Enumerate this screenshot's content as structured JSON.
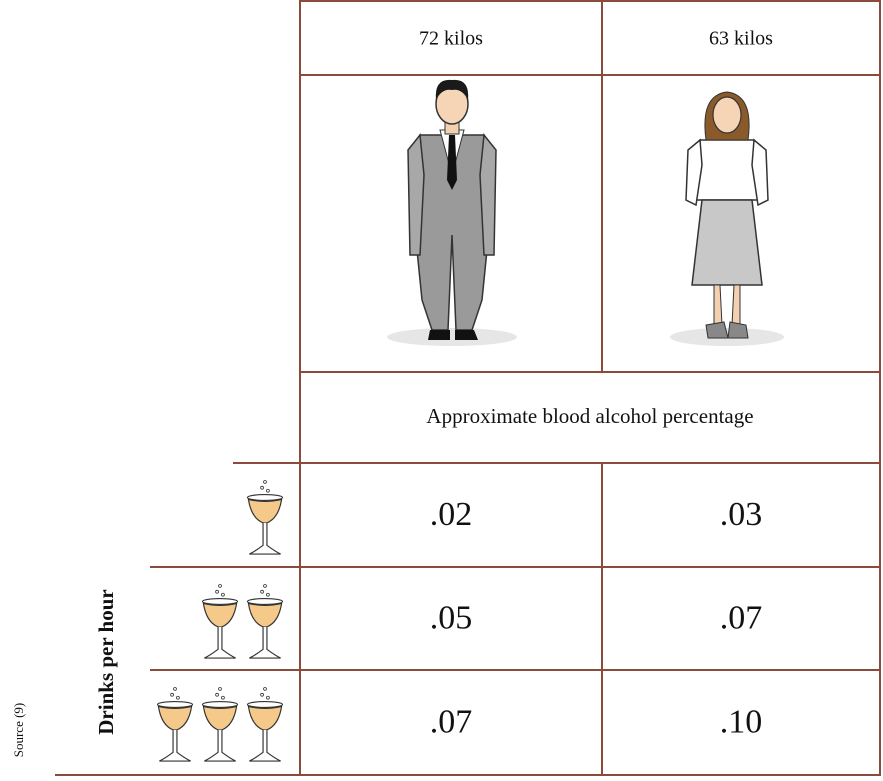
{
  "table": {
    "columns": [
      "72 kilos",
      "63 kilos"
    ],
    "caption": "Approximate blood alcohol percentage",
    "row_label": "Drinks per hour",
    "rows": [
      {
        "glasses": 1,
        "values": [
          ".02",
          ".03"
        ]
      },
      {
        "glasses": 2,
        "values": [
          ".05",
          ".07"
        ]
      },
      {
        "glasses": 3,
        "values": [
          ".07",
          ".10"
        ]
      }
    ],
    "source": "Source (9)"
  }
}
